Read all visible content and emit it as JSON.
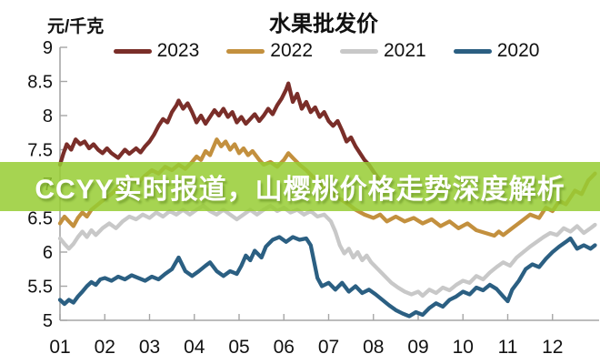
{
  "header": {
    "unit_label": "元/千克",
    "title": "水果批发价"
  },
  "overlay": {
    "text": "CCYY实时报道，山樱桃价格走势深度解析",
    "background_rgba": "rgba(150,205,50,0.85)",
    "text_color": "#ffffff"
  },
  "axes": {
    "y_tick_labels": [
      "5",
      "5.5",
      "6",
      "6.5",
      "7",
      "7.5",
      "8",
      "8.5",
      "9"
    ],
    "x_tick_labels": [
      "01",
      "02",
      "03",
      "04",
      "05",
      "06",
      "07",
      "08",
      "09",
      "10",
      "11",
      "12"
    ],
    "axis_color": "#a6a6a6",
    "label_color": "#111111"
  },
  "chart_data": {
    "type": "line",
    "title": "水果批发价",
    "ylabel": "元/千克",
    "ylim": [
      5,
      9
    ],
    "xlim": [
      1,
      13
    ],
    "grid": false,
    "legend_position": "top",
    "yticks": [
      5,
      5.5,
      6,
      6.5,
      7,
      7.5,
      8,
      8.5,
      9
    ],
    "xticks": [
      1,
      2,
      3,
      4,
      5,
      6,
      7,
      8,
      9,
      10,
      11,
      12
    ],
    "series": [
      {
        "name": "2023",
        "color": "#7A2E29",
        "x": [
          1.0,
          1.08,
          1.15,
          1.25,
          1.35,
          1.45,
          1.55,
          1.65,
          1.75,
          1.85,
          1.95,
          2.05,
          2.15,
          2.3,
          2.45,
          2.55,
          2.7,
          2.8,
          2.9,
          3.0,
          3.1,
          3.2,
          3.3,
          3.4,
          3.5,
          3.6,
          3.65,
          3.75,
          3.85,
          3.95,
          4.05,
          4.15,
          4.25,
          4.35,
          4.45,
          4.55,
          4.65,
          4.75,
          4.85,
          4.95,
          5.05,
          5.15,
          5.25,
          5.35,
          5.45,
          5.55,
          5.65,
          5.75,
          5.85,
          5.95,
          6.05,
          6.1,
          6.2,
          6.3,
          6.4,
          6.5,
          6.6,
          6.7,
          6.8,
          6.9,
          7.0,
          7.1,
          7.2,
          7.3,
          7.4,
          7.5,
          7.6,
          7.7,
          7.8,
          7.9,
          8.0,
          8.15,
          8.3
        ],
        "y": [
          7.28,
          7.45,
          7.58,
          7.5,
          7.65,
          7.58,
          7.62,
          7.52,
          7.58,
          7.5,
          7.45,
          7.52,
          7.45,
          7.38,
          7.5,
          7.44,
          7.52,
          7.46,
          7.55,
          7.62,
          7.72,
          7.85,
          7.95,
          7.9,
          8.05,
          8.15,
          8.22,
          8.1,
          8.18,
          8.05,
          7.9,
          8.0,
          7.88,
          7.98,
          8.08,
          8.0,
          8.1,
          7.98,
          8.05,
          7.9,
          7.98,
          7.88,
          7.95,
          8.02,
          7.92,
          8.0,
          8.1,
          8.02,
          8.15,
          8.25,
          8.38,
          8.47,
          8.2,
          8.32,
          8.1,
          8.2,
          8.05,
          8.12,
          7.98,
          8.05,
          7.92,
          7.85,
          7.92,
          7.78,
          7.62,
          7.68,
          7.55,
          7.45,
          7.35,
          7.28,
          7.18,
          7.05,
          6.98
        ]
      },
      {
        "name": "2022",
        "color": "#C3903E",
        "x": [
          1.0,
          1.1,
          1.2,
          1.3,
          1.4,
          1.5,
          1.6,
          1.7,
          1.85,
          2.0,
          2.15,
          2.3,
          2.45,
          2.6,
          2.75,
          2.9,
          3.05,
          3.2,
          3.35,
          3.5,
          3.65,
          3.8,
          3.95,
          4.05,
          4.15,
          4.25,
          4.35,
          4.5,
          4.6,
          4.7,
          4.8,
          4.9,
          5.0,
          5.1,
          5.2,
          5.3,
          5.45,
          5.55,
          5.7,
          5.85,
          6.0,
          6.1,
          6.2,
          6.35,
          6.5,
          6.65,
          6.8,
          7.0,
          7.2,
          7.4,
          7.6,
          7.8,
          8.0,
          8.15,
          8.3,
          8.5,
          8.7,
          8.9,
          9.1,
          9.3,
          9.5,
          9.7,
          9.9,
          10.1,
          10.3,
          10.5,
          10.7,
          10.8,
          10.9,
          11.1,
          11.3,
          11.5,
          11.7,
          11.85,
          12.0,
          12.15,
          12.3,
          12.5,
          12.65,
          12.8,
          12.95
        ],
        "y": [
          6.42,
          6.52,
          6.45,
          6.38,
          6.5,
          6.58,
          6.52,
          6.62,
          6.7,
          6.78,
          6.85,
          6.95,
          7.0,
          7.08,
          7.02,
          7.12,
          7.2,
          7.15,
          7.25,
          7.2,
          7.28,
          7.22,
          7.32,
          7.4,
          7.35,
          7.48,
          7.42,
          7.65,
          7.55,
          7.62,
          7.5,
          7.58,
          7.45,
          7.52,
          7.42,
          7.48,
          7.35,
          7.28,
          7.32,
          7.25,
          7.35,
          7.45,
          7.38,
          7.28,
          7.2,
          7.1,
          7.0,
          6.9,
          6.8,
          6.72,
          6.62,
          6.55,
          6.5,
          6.55,
          6.45,
          6.52,
          6.45,
          6.5,
          6.42,
          6.48,
          6.38,
          6.45,
          6.35,
          6.42,
          6.32,
          6.28,
          6.24,
          6.3,
          6.25,
          6.35,
          6.45,
          6.55,
          6.5,
          6.65,
          6.6,
          6.75,
          6.7,
          6.9,
          6.85,
          7.05,
          7.15
        ]
      },
      {
        "name": "2021",
        "color": "#C8C8C8",
        "x": [
          1.0,
          1.1,
          1.2,
          1.3,
          1.4,
          1.5,
          1.6,
          1.7,
          1.8,
          1.95,
          2.1,
          2.25,
          2.4,
          2.55,
          2.7,
          2.85,
          3.0,
          3.15,
          3.3,
          3.45,
          3.6,
          3.75,
          3.9,
          4.05,
          4.2,
          4.35,
          4.5,
          4.65,
          4.8,
          4.95,
          5.1,
          5.25,
          5.4,
          5.55,
          5.7,
          5.85,
          6.0,
          6.15,
          6.3,
          6.45,
          6.6,
          6.75,
          6.9,
          7.05,
          7.15,
          7.25,
          7.35,
          7.45,
          7.55,
          7.65,
          7.75,
          7.85,
          7.95,
          8.1,
          8.25,
          8.4,
          8.55,
          8.7,
          8.85,
          9.0,
          9.1,
          9.25,
          9.4,
          9.55,
          9.7,
          9.85,
          10.0,
          10.15,
          10.3,
          10.45,
          10.6,
          10.75,
          10.9,
          11.05,
          11.2,
          11.35,
          11.5,
          11.65,
          11.8,
          11.95,
          12.1,
          12.25,
          12.4,
          12.55,
          12.7,
          12.85,
          12.95
        ],
        "y": [
          6.2,
          6.12,
          6.05,
          6.12,
          6.22,
          6.3,
          6.22,
          6.32,
          6.25,
          6.35,
          6.42,
          6.35,
          6.45,
          6.52,
          6.48,
          6.55,
          6.5,
          6.58,
          6.52,
          6.6,
          6.55,
          6.62,
          6.55,
          6.62,
          6.68,
          6.6,
          6.55,
          6.62,
          6.55,
          6.48,
          6.55,
          6.62,
          6.55,
          6.62,
          6.68,
          6.6,
          6.65,
          6.58,
          6.62,
          6.55,
          6.6,
          6.52,
          6.55,
          6.45,
          6.3,
          6.1,
          5.98,
          6.05,
          5.92,
          6.0,
          5.88,
          5.95,
          5.85,
          5.75,
          5.65,
          5.55,
          5.48,
          5.42,
          5.38,
          5.42,
          5.36,
          5.45,
          5.4,
          5.48,
          5.44,
          5.52,
          5.58,
          5.55,
          5.65,
          5.6,
          5.7,
          5.78,
          5.85,
          5.8,
          5.92,
          6.0,
          6.08,
          6.15,
          6.22,
          6.28,
          6.25,
          6.35,
          6.3,
          6.38,
          6.28,
          6.35,
          6.4
        ]
      },
      {
        "name": "2020",
        "color": "#2B5F82",
        "x": [
          1.0,
          1.1,
          1.2,
          1.3,
          1.4,
          1.5,
          1.6,
          1.7,
          1.8,
          1.9,
          2.0,
          2.15,
          2.3,
          2.45,
          2.6,
          2.75,
          2.9,
          3.05,
          3.2,
          3.35,
          3.5,
          3.65,
          3.8,
          3.95,
          4.1,
          4.25,
          4.35,
          4.5,
          4.65,
          4.8,
          4.95,
          5.05,
          5.15,
          5.25,
          5.35,
          5.5,
          5.6,
          5.75,
          5.9,
          6.05,
          6.2,
          6.35,
          6.5,
          6.6,
          6.75,
          6.85,
          7.0,
          7.15,
          7.3,
          7.45,
          7.6,
          7.75,
          7.9,
          8.05,
          8.2,
          8.35,
          8.5,
          8.65,
          8.8,
          8.95,
          9.1,
          9.25,
          9.4,
          9.55,
          9.7,
          9.85,
          10.0,
          10.15,
          10.3,
          10.45,
          10.6,
          10.75,
          10.9,
          11.0,
          11.1,
          11.25,
          11.4,
          11.55,
          11.7,
          11.85,
          12.0,
          12.15,
          12.3,
          12.4,
          12.55,
          12.7,
          12.85,
          12.95
        ],
        "y": [
          5.3,
          5.24,
          5.3,
          5.26,
          5.35,
          5.42,
          5.5,
          5.56,
          5.52,
          5.6,
          5.62,
          5.58,
          5.64,
          5.6,
          5.66,
          5.62,
          5.58,
          5.64,
          5.6,
          5.68,
          5.75,
          5.92,
          5.72,
          5.65,
          5.72,
          5.8,
          5.85,
          5.72,
          5.65,
          5.72,
          5.68,
          5.8,
          5.95,
          5.88,
          6.02,
          5.92,
          6.08,
          6.18,
          6.22,
          6.15,
          6.22,
          6.18,
          6.2,
          6.1,
          5.62,
          5.5,
          5.55,
          5.45,
          5.55,
          5.42,
          5.5,
          5.4,
          5.45,
          5.38,
          5.3,
          5.22,
          5.15,
          5.1,
          5.06,
          5.12,
          5.08,
          5.18,
          5.25,
          5.2,
          5.3,
          5.35,
          5.42,
          5.38,
          5.48,
          5.44,
          5.52,
          5.46,
          5.35,
          5.28,
          5.45,
          5.58,
          5.75,
          5.82,
          5.78,
          5.9,
          6.0,
          6.08,
          6.15,
          6.2,
          6.05,
          6.1,
          6.05,
          6.1
        ]
      }
    ]
  }
}
